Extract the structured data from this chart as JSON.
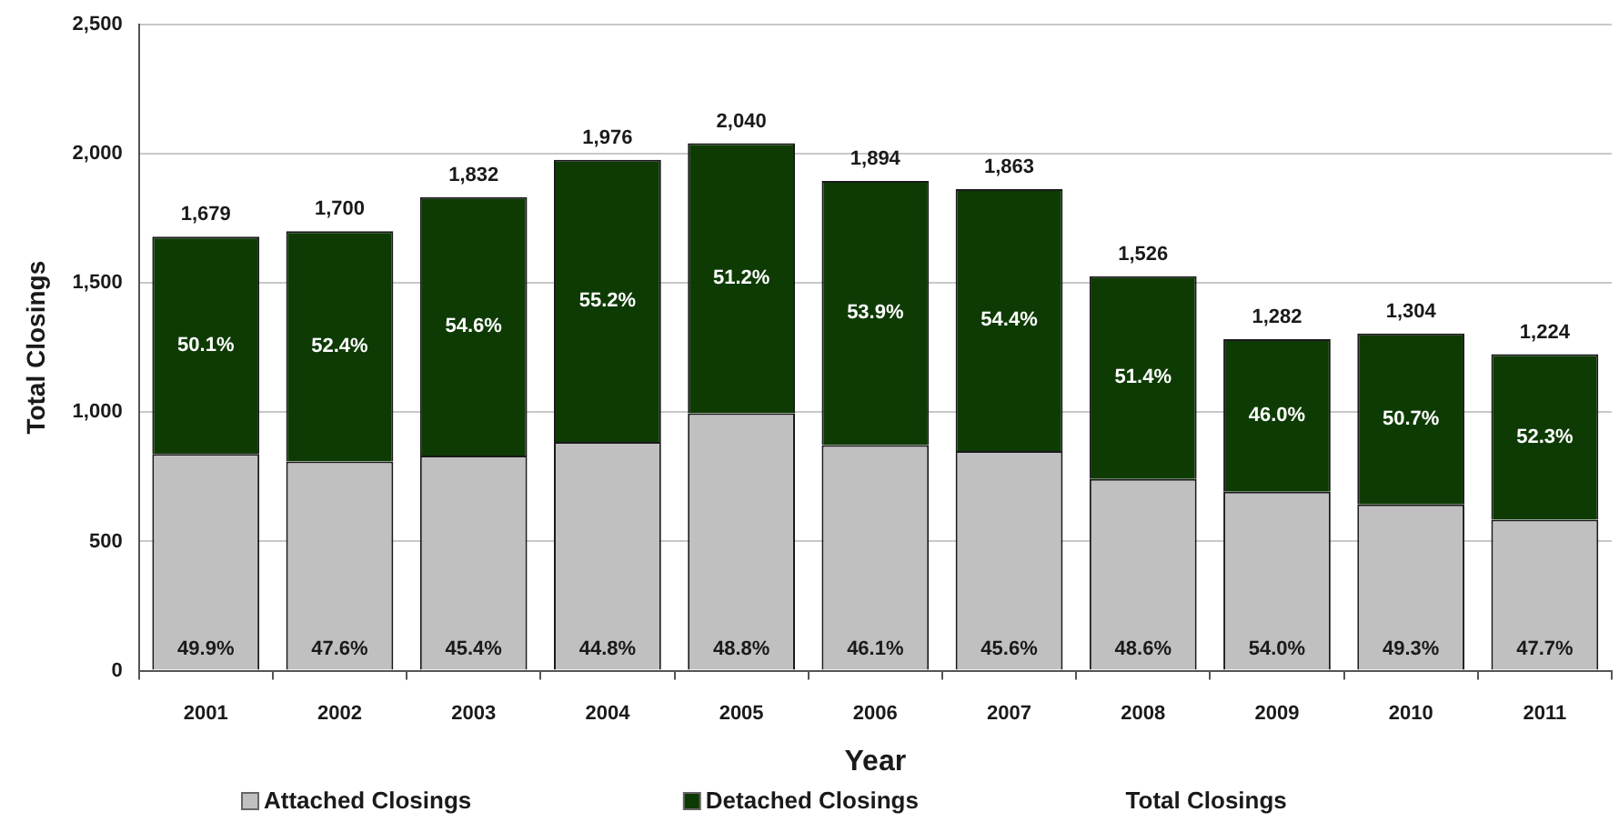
{
  "chart_data": {
    "type": "bar",
    "stacked": true,
    "categories": [
      "2001",
      "2002",
      "2003",
      "2004",
      "2005",
      "2006",
      "2007",
      "2008",
      "2009",
      "2010",
      "2011"
    ],
    "series": [
      {
        "name": "Attached Closings",
        "color": "#c0c0c0",
        "values": [
          838,
          809,
          832,
          885,
          996,
          873,
          850,
          742,
          692,
          643,
          584
        ]
      },
      {
        "name": "Detached Closings",
        "color": "#0e3b04",
        "values": [
          841,
          891,
          1000,
          1091,
          1044,
          1021,
          1013,
          784,
          590,
          661,
          640
        ]
      }
    ],
    "totals": [
      "1,679",
      "1,700",
      "1,832",
      "1,976",
      "2,040",
      "1,894",
      "1,863",
      "1,526",
      "1,282",
      "1,304",
      "1,224"
    ],
    "xlabel": "Year",
    "ylabel": "Total Closings",
    "ylim": [
      0,
      2500
    ],
    "yticks": [
      0,
      500,
      {
        "value": 1000,
        "label": "1,000"
      },
      {
        "value": 1500,
        "label": "1,500"
      },
      {
        "value": 2000,
        "label": "2,000"
      },
      {
        "value": 2500,
        "label": "2,500"
      }
    ],
    "grid": "y",
    "legend": "bottom",
    "annotations": [
      "49.9%",
      "47.6%",
      "45.4%",
      "44.8%",
      "48.8%",
      "46.1%",
      "45.6%",
      "48.6%",
      "54.0%",
      "49.3%",
      "47.7%",
      "50.1%",
      "52.4%",
      "54.6%",
      "55.2%",
      "51.2%",
      "53.9%",
      "54.4%",
      "51.4%",
      "46.0%",
      "50.7%",
      "52.3%",
      "Total Closings"
    ]
  }
}
